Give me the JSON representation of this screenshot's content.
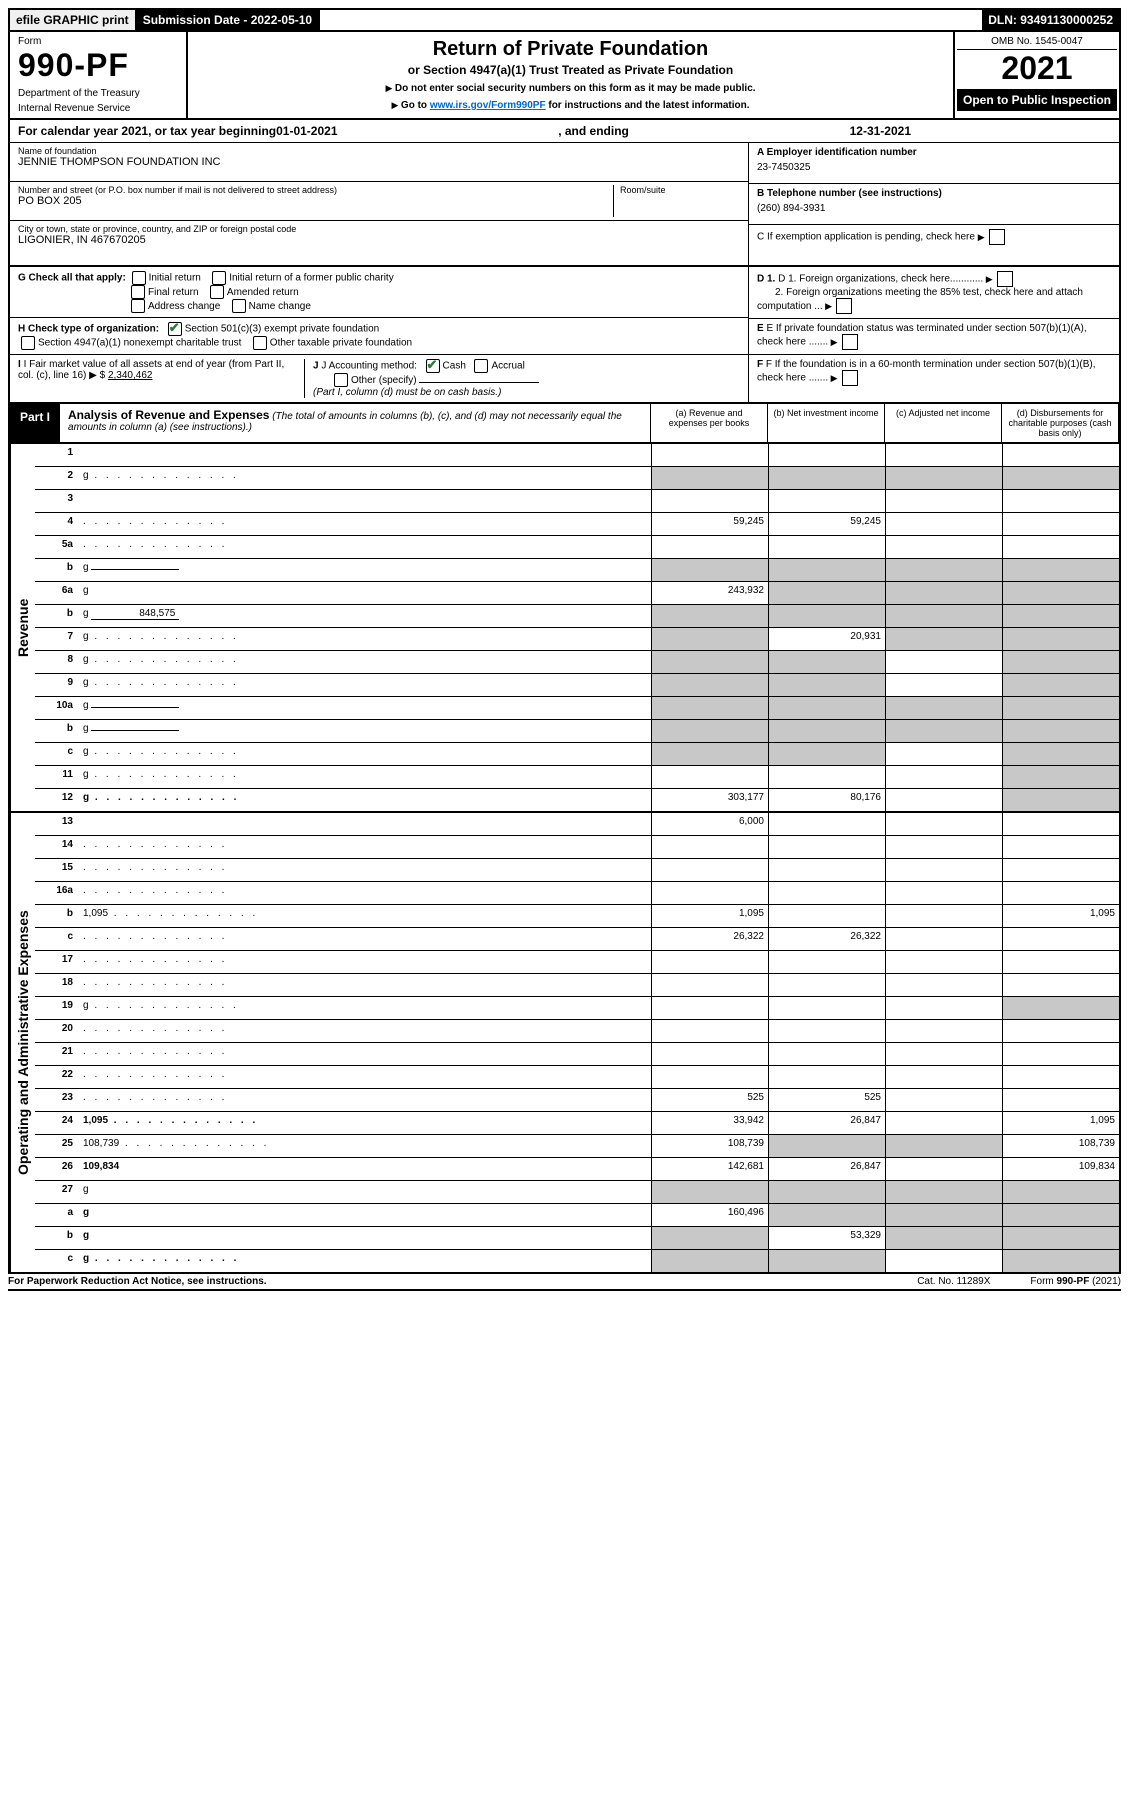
{
  "topbar": {
    "efile": "efile GRAPHIC print",
    "sub_label": "Submission Date - 2022-05-10",
    "dln": "DLN: 93491130000252"
  },
  "header": {
    "form_label": "Form",
    "form_num": "990-PF",
    "dept1": "Department of the Treasury",
    "dept2": "Internal Revenue Service",
    "title": "Return of Private Foundation",
    "subtitle": "or Section 4947(a)(1) Trust Treated as Private Foundation",
    "inst1": "Do not enter social security numbers on this form as it may be made public.",
    "inst2_pre": "Go to ",
    "inst2_link": "www.irs.gov/Form990PF",
    "inst2_post": " for instructions and the latest information.",
    "omb": "OMB No. 1545-0047",
    "year": "2021",
    "open": "Open to Public Inspection"
  },
  "calyear": {
    "pre": "For calendar year 2021, or tax year beginning ",
    "begin": "01-01-2021",
    "mid": ", and ending ",
    "end": "12-31-2021"
  },
  "entity": {
    "name_label": "Name of foundation",
    "name": "JENNIE THOMPSON FOUNDATION INC",
    "addr_label": "Number and street (or P.O. box number if mail is not delivered to street address)",
    "addr": "PO BOX 205",
    "room_label": "Room/suite",
    "city_label": "City or town, state or province, country, and ZIP or foreign postal code",
    "city": "LIGONIER, IN  467670205",
    "ein_label": "A Employer identification number",
    "ein": "23-7450325",
    "tel_label": "B Telephone number (see instructions)",
    "tel": "(260) 894-3931",
    "c_label": "C If exemption application is pending, check here"
  },
  "checks": {
    "g_label": "G Check all that apply:",
    "g_opts": [
      "Initial return",
      "Initial return of a former public charity",
      "Final return",
      "Amended return",
      "Address change",
      "Name change"
    ],
    "h_label": "H Check type of organization:",
    "h1": "Section 501(c)(3) exempt private foundation",
    "h2": "Section 4947(a)(1) nonexempt charitable trust",
    "h3": "Other taxable private foundation",
    "i_label": "I Fair market value of all assets at end of year (from Part II, col. (c), line 16) ▶ $",
    "i_val": "2,340,462",
    "j_label": "J Accounting method:",
    "j_cash": "Cash",
    "j_acc": "Accrual",
    "j_other": "Other (specify)",
    "j_note": "(Part I, column (d) must be on cash basis.)",
    "d1": "D 1. Foreign organizations, check here............",
    "d2": "2. Foreign organizations meeting the 85% test, check here and attach computation ...",
    "e": "E If private foundation status was terminated under section 507(b)(1)(A), check here .......",
    "f": "F If the foundation is in a 60-month termination under section 507(b)(1)(B), check here ......."
  },
  "part1": {
    "label": "Part I",
    "title": "Analysis of Revenue and Expenses",
    "note": "(The total of amounts in columns (b), (c), and (d) may not necessarily equal the amounts in column (a) (see instructions).)",
    "cols": {
      "a": "(a) Revenue and expenses per books",
      "b": "(b) Net investment income",
      "c": "(c) Adjusted net income",
      "d": "(d) Disbursements for charitable purposes (cash basis only)"
    }
  },
  "sides": {
    "rev": "Revenue",
    "exp": "Operating and Administrative Expenses"
  },
  "lines": [
    {
      "n": "1",
      "d": "",
      "a": "",
      "b": "",
      "c": ""
    },
    {
      "n": "2",
      "d": "g",
      "dots": true,
      "a": "g",
      "b": "g",
      "c": "g"
    },
    {
      "n": "3",
      "d": "",
      "a": "",
      "b": "",
      "c": ""
    },
    {
      "n": "4",
      "d": "",
      "dots": true,
      "a": "59,245",
      "b": "59,245",
      "c": ""
    },
    {
      "n": "5a",
      "d": "",
      "dots": true,
      "a": "",
      "b": "",
      "c": ""
    },
    {
      "n": "b",
      "d": "g",
      "mini": "",
      "a": "g",
      "b": "g",
      "c": "g"
    },
    {
      "n": "6a",
      "d": "g",
      "a": "243,932",
      "b": "g",
      "c": "g"
    },
    {
      "n": "b",
      "d": "g",
      "mini": "848,575",
      "a": "g",
      "b": "g",
      "c": "g"
    },
    {
      "n": "7",
      "d": "g",
      "dots": true,
      "a": "g",
      "b": "20,931",
      "c": "g"
    },
    {
      "n": "8",
      "d": "g",
      "dots": true,
      "a": "g",
      "b": "g",
      "c": ""
    },
    {
      "n": "9",
      "d": "g",
      "dots": true,
      "a": "g",
      "b": "g",
      "c": ""
    },
    {
      "n": "10a",
      "d": "g",
      "mini": "",
      "a": "g",
      "b": "g",
      "c": "g"
    },
    {
      "n": "b",
      "d": "g",
      "dots": true,
      "mini": "",
      "a": "g",
      "b": "g",
      "c": "g"
    },
    {
      "n": "c",
      "d": "g",
      "dots": true,
      "a": "g",
      "b": "g",
      "c": ""
    },
    {
      "n": "11",
      "d": "g",
      "dots": true,
      "a": "",
      "b": "",
      "c": ""
    },
    {
      "n": "12",
      "d": "g",
      "dots": true,
      "bold": true,
      "a": "303,177",
      "b": "80,176",
      "c": ""
    }
  ],
  "exp_lines": [
    {
      "n": "13",
      "d": "",
      "a": "6,000",
      "b": "",
      "c": ""
    },
    {
      "n": "14",
      "d": "",
      "dots": true,
      "a": "",
      "b": "",
      "c": ""
    },
    {
      "n": "15",
      "d": "",
      "dots": true,
      "a": "",
      "b": "",
      "c": ""
    },
    {
      "n": "16a",
      "d": "",
      "dots": true,
      "a": "",
      "b": "",
      "c": ""
    },
    {
      "n": "b",
      "d": "1,095",
      "dots": true,
      "a": "1,095",
      "b": "",
      "c": ""
    },
    {
      "n": "c",
      "d": "",
      "dots": true,
      "a": "26,322",
      "b": "26,322",
      "c": ""
    },
    {
      "n": "17",
      "d": "",
      "dots": true,
      "a": "",
      "b": "",
      "c": ""
    },
    {
      "n": "18",
      "d": "",
      "dots": true,
      "a": "",
      "b": "",
      "c": ""
    },
    {
      "n": "19",
      "d": "g",
      "dots": true,
      "a": "",
      "b": "",
      "c": ""
    },
    {
      "n": "20",
      "d": "",
      "dots": true,
      "a": "",
      "b": "",
      "c": ""
    },
    {
      "n": "21",
      "d": "",
      "dots": true,
      "a": "",
      "b": "",
      "c": ""
    },
    {
      "n": "22",
      "d": "",
      "dots": true,
      "a": "",
      "b": "",
      "c": ""
    },
    {
      "n": "23",
      "d": "",
      "dots": true,
      "a": "525",
      "b": "525",
      "c": ""
    },
    {
      "n": "24",
      "d": "1,095",
      "dots": true,
      "bold": true,
      "a": "33,942",
      "b": "26,847",
      "c": ""
    },
    {
      "n": "25",
      "d": "108,739",
      "dots": true,
      "a": "108,739",
      "b": "g",
      "c": "g"
    },
    {
      "n": "26",
      "d": "109,834",
      "bold": true,
      "a": "142,681",
      "b": "26,847",
      "c": ""
    },
    {
      "n": "27",
      "d": "g",
      "a": "g",
      "b": "g",
      "c": "g"
    },
    {
      "n": "a",
      "d": "g",
      "bold": true,
      "a": "160,496",
      "b": "g",
      "c": "g"
    },
    {
      "n": "b",
      "d": "g",
      "bold": true,
      "a": "g",
      "b": "53,329",
      "c": "g"
    },
    {
      "n": "c",
      "d": "g",
      "dots": true,
      "bold": true,
      "a": "g",
      "b": "g",
      "c": ""
    }
  ],
  "footer": {
    "left": "For Paperwork Reduction Act Notice, see instructions.",
    "mid": "Cat. No. 11289X",
    "right": "Form 990-PF (2021)"
  }
}
